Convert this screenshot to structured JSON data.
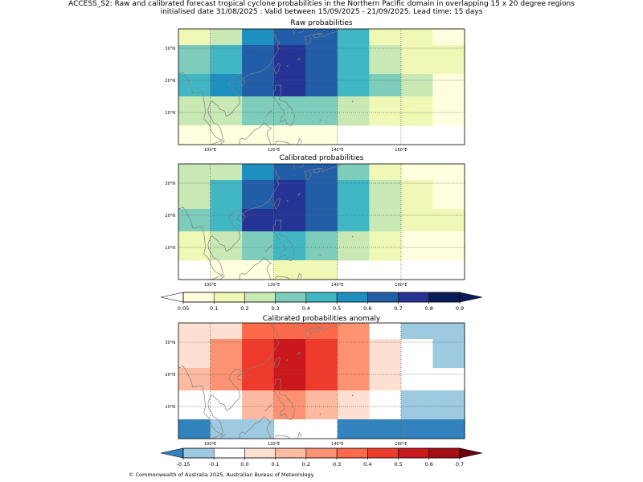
{
  "figure": {
    "title_line1": "ACCESS_S2: Raw and calibrated forecast tropical cyclone probabilities in the Northern Pacific domain in overlapping 15 x 20 degree regions",
    "title_line2": "initialised date 31/08/2025 :  Valid between 15/09/2025 - 21/09/2025. Lead time: 15 days",
    "copyright": "© Commonwealth of Australia 2025, Australian Bureau of Meteorology"
  },
  "colors": {
    "prob_scale": [
      "#ffffe0",
      "#eff8b4",
      "#c8e8b4",
      "#7ecdbb",
      "#41b7c4",
      "#1e90c0",
      "#225ea8",
      "#253394",
      "#081d58"
    ],
    "prob_under": "#ffffff",
    "prob_over": "#081d58",
    "anom_scale": [
      "#9ecae1",
      "#ffffff",
      "#fee0d2",
      "#fcbba1",
      "#fc9272",
      "#fb6a4a",
      "#ef3b2c",
      "#cb181d",
      "#a50f15"
    ],
    "anom_under": "#3182bd",
    "anom_over": "#67000d",
    "coast": "#808080"
  },
  "chart_data": [
    {
      "type": "heatmap",
      "title": "Raw probabilities",
      "x_edges": [
        90,
        100,
        110,
        120,
        130,
        140,
        150,
        160,
        170,
        180
      ],
      "y_edges": [
        0,
        6,
        15,
        22,
        31,
        36
      ],
      "xticks": [
        100,
        120,
        140,
        160
      ],
      "xtick_labels": [
        "100°E",
        "120°E",
        "140°E",
        "160°E"
      ],
      "yticks": [
        10,
        20,
        30
      ],
      "ytick_labels": [
        "10°N",
        "20°N",
        "30°N"
      ],
      "values": [
        [
          0.15,
          0.2,
          0.55,
          0.65,
          0.6,
          0.4,
          0.15,
          0.15,
          0.05
        ],
        [
          0.35,
          0.45,
          0.65,
          0.75,
          0.65,
          0.45,
          0.25,
          0.15,
          0.15
        ],
        [
          0.45,
          0.55,
          0.65,
          0.75,
          0.65,
          0.45,
          0.35,
          0.25,
          0.05
        ],
        [
          0.25,
          0.25,
          0.35,
          0.35,
          0.35,
          0.25,
          0.15,
          0.15,
          0.05
        ],
        [
          0.05,
          0.05,
          0.05,
          0.05,
          0.05,
          null,
          null,
          null,
          null
        ]
      ]
    },
    {
      "type": "heatmap",
      "title": "Calibrated probabilities",
      "x_edges": [
        90,
        100,
        110,
        120,
        130,
        140,
        150,
        160,
        170,
        180
      ],
      "y_edges": [
        0,
        6,
        15,
        22,
        31,
        36
      ],
      "xticks": [
        100,
        120,
        140,
        160
      ],
      "xtick_labels": [
        "100°E",
        "120°E",
        "140°E",
        "160°E"
      ],
      "yticks": [
        10,
        20,
        30
      ],
      "ytick_labels": [
        "10°N",
        "20°N",
        "30°N"
      ],
      "values": [
        [
          0.25,
          0.25,
          0.55,
          0.65,
          0.6,
          0.35,
          0.15,
          0.05,
          0.05
        ],
        [
          0.25,
          0.45,
          0.65,
          0.75,
          0.65,
          0.45,
          0.25,
          0.15,
          0.05
        ],
        [
          0.35,
          0.45,
          0.75,
          0.75,
          0.65,
          0.45,
          0.25,
          0.15,
          0.15
        ],
        [
          0.15,
          0.25,
          0.35,
          0.45,
          0.35,
          0.25,
          0.15,
          0.05,
          0.05
        ],
        [
          null,
          0.05,
          0.05,
          0.15,
          0.15,
          null,
          null,
          null,
          null
        ]
      ]
    },
    {
      "type": "heatmap",
      "title": "Calibrated probabilities anomaly",
      "x_edges": [
        90,
        100,
        110,
        120,
        130,
        140,
        150,
        160,
        170,
        180
      ],
      "y_edges": [
        0,
        6,
        15,
        22,
        31,
        36
      ],
      "xticks": [
        100,
        120,
        140,
        160
      ],
      "xtick_labels": [
        "100°E",
        "120°E",
        "140°E",
        "160°E"
      ],
      "yticks": [
        10,
        20,
        30
      ],
      "ytick_labels": [
        "10°N",
        "20°N",
        "30°N"
      ],
      "values": [
        [
          0.05,
          0.05,
          0.35,
          0.35,
          0.35,
          0.25,
          -0.05,
          -0.12,
          -0.12
        ],
        [
          0.05,
          0.25,
          0.45,
          0.55,
          0.45,
          0.25,
          0.05,
          -0.05,
          -0.12
        ],
        [
          0.15,
          0.25,
          0.45,
          0.55,
          0.45,
          0.25,
          0.05,
          -0.05,
          -0.05
        ],
        [
          -0.05,
          -0.05,
          0.15,
          0.25,
          0.15,
          0.05,
          -0.05,
          -0.12,
          -0.12
        ],
        [
          -0.2,
          -0.12,
          -0.12,
          -0.05,
          -0.05,
          -0.2,
          -0.2,
          -0.2,
          -0.2
        ]
      ]
    }
  ],
  "colorbars": [
    {
      "name": "probability-colorbar",
      "bounds": [
        0.05,
        0.1,
        0.2,
        0.3,
        0.4,
        0.5,
        0.6,
        0.7,
        0.8,
        0.9
      ],
      "labels": [
        "0.05",
        "0.1",
        "0.2",
        "0.3",
        "0.4",
        "0.5",
        "0.6",
        "0.7",
        "0.8",
        "0.9"
      ]
    },
    {
      "name": "anomaly-colorbar",
      "bounds": [
        -0.15,
        -0.1,
        0.0,
        0.1,
        0.2,
        0.3,
        0.4,
        0.5,
        0.6,
        0.7
      ],
      "labels": [
        "-0.15",
        "-0.1",
        "0.0",
        "0.1",
        "0.2",
        "0.3",
        "0.4",
        "0.5",
        "0.6",
        "0.7"
      ]
    }
  ]
}
